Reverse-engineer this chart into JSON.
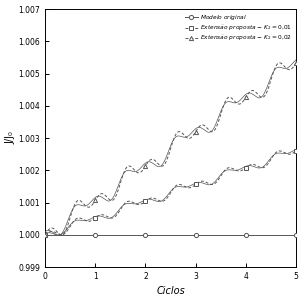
{
  "xlabel": "Ciclos",
  "ylabel": "J/J₀",
  "xlim": [
    0,
    5
  ],
  "ylim": [
    0.999,
    1.007
  ],
  "yticks": [
    0.999,
    1.0,
    1.001,
    1.002,
    1.003,
    1.004,
    1.005,
    1.006,
    1.007
  ],
  "xticks": [
    0,
    1,
    2,
    3,
    4,
    5
  ],
  "color": "#555555",
  "line1_end": 1.0,
  "line2_end": 1.0026,
  "line3_end": 1.00533,
  "ncycles": 5,
  "steps_per_cycle": 12,
  "legend_labels": [
    "Modelo original",
    "Extensão proposta - $K_2 = 0,01$",
    "Extensão proposta - $K_2 = 0,02$"
  ]
}
